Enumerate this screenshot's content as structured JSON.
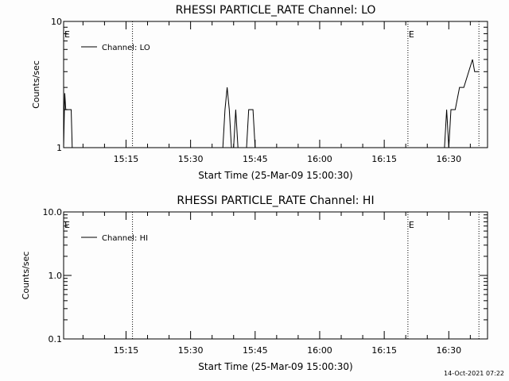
{
  "chart_data": [
    {
      "type": "line",
      "title": "RHESSI PARTICLE_RATE Channel: LO",
      "xlabel": "Start Time (25-Mar-09 15:00:30)",
      "ylabel": "Counts/sec",
      "yscale": "log",
      "ylim": [
        1,
        10
      ],
      "xlim": [
        "15:00:30",
        "16:39:00"
      ],
      "ytick_labels": [
        "1",
        "10"
      ],
      "xtick_labels": [
        "15:15",
        "15:30",
        "15:45",
        "16:00",
        "16:15",
        "16:30"
      ],
      "grid": false,
      "legend_position": "top-left",
      "series": [
        {
          "name": "Channel: LO",
          "x": [
            "15:00:30",
            "15:00:45",
            "15:01:00",
            "15:01:30",
            "15:02:15",
            "15:02:30",
            "15:37:30",
            "15:38:00",
            "15:38:30",
            "15:39:00",
            "15:39:30",
            "15:40:00",
            "15:40:30",
            "15:41:00",
            "15:43:00",
            "15:43:30",
            "15:44:30",
            "15:45:00",
            "16:28:15",
            "16:29:00",
            "16:29:30",
            "16:30:00",
            "16:30:30",
            "16:31:30",
            "16:32:30",
            "16:33:30",
            "16:35:30",
            "16:36:00",
            "16:36:30",
            "16:37:00"
          ],
          "y": [
            1,
            2.7,
            2,
            2,
            2,
            1,
            1,
            2,
            3,
            2,
            1,
            1,
            2,
            1,
            1,
            2,
            2,
            1,
            1,
            1,
            2,
            1,
            2,
            2,
            3,
            3,
            5,
            4,
            4,
            4
          ]
        }
      ],
      "markers": [
        {
          "label": "E",
          "x": "15:00:30"
        },
        {
          "label": "",
          "x": "15:16:30"
        },
        {
          "label": "E",
          "x": "16:20:30"
        },
        {
          "label": "",
          "x": "16:37:00"
        }
      ]
    },
    {
      "type": "line",
      "title": "RHESSI PARTICLE_RATE Channel: HI",
      "xlabel": "Start Time (25-Mar-09 15:00:30)",
      "ylabel": "Counts/sec",
      "yscale": "log",
      "ylim": [
        0.1,
        10
      ],
      "xlim": [
        "15:00:30",
        "16:39:00"
      ],
      "ytick_labels": [
        "0.1",
        "1.0",
        "10.0"
      ],
      "xtick_labels": [
        "15:15",
        "15:30",
        "15:45",
        "16:00",
        "16:15",
        "16:30"
      ],
      "grid": false,
      "legend_position": "top-left",
      "series": [
        {
          "name": "Channel: HI",
          "x": [],
          "y": []
        }
      ],
      "markers": [
        {
          "label": "E",
          "x": "15:00:30"
        },
        {
          "label": "",
          "x": "15:16:30"
        },
        {
          "label": "E",
          "x": "16:20:30"
        },
        {
          "label": "",
          "x": "16:37:00"
        }
      ]
    }
  ],
  "footer": {
    "timestamp": "14-Oct-2021 07:22"
  }
}
